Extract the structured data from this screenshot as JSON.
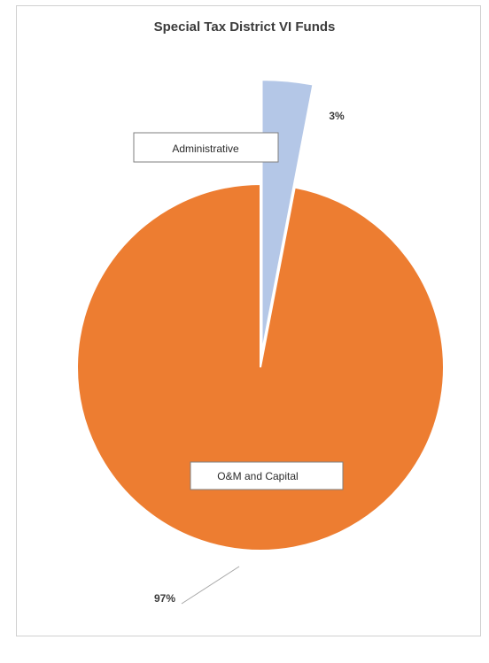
{
  "chart_data": {
    "type": "pie",
    "title": "Special Tax District VI Funds",
    "slices": [
      {
        "label": "Administrative",
        "value": 3,
        "pct_label": "3%",
        "color": "#b4c7e7",
        "exploded": true
      },
      {
        "label": "O&M and Capital",
        "value": 97,
        "pct_label": "97%",
        "color": "#ed7d31",
        "exploded": false
      }
    ],
    "legend": "none",
    "data_labels": "callout boxes with percentages"
  }
}
